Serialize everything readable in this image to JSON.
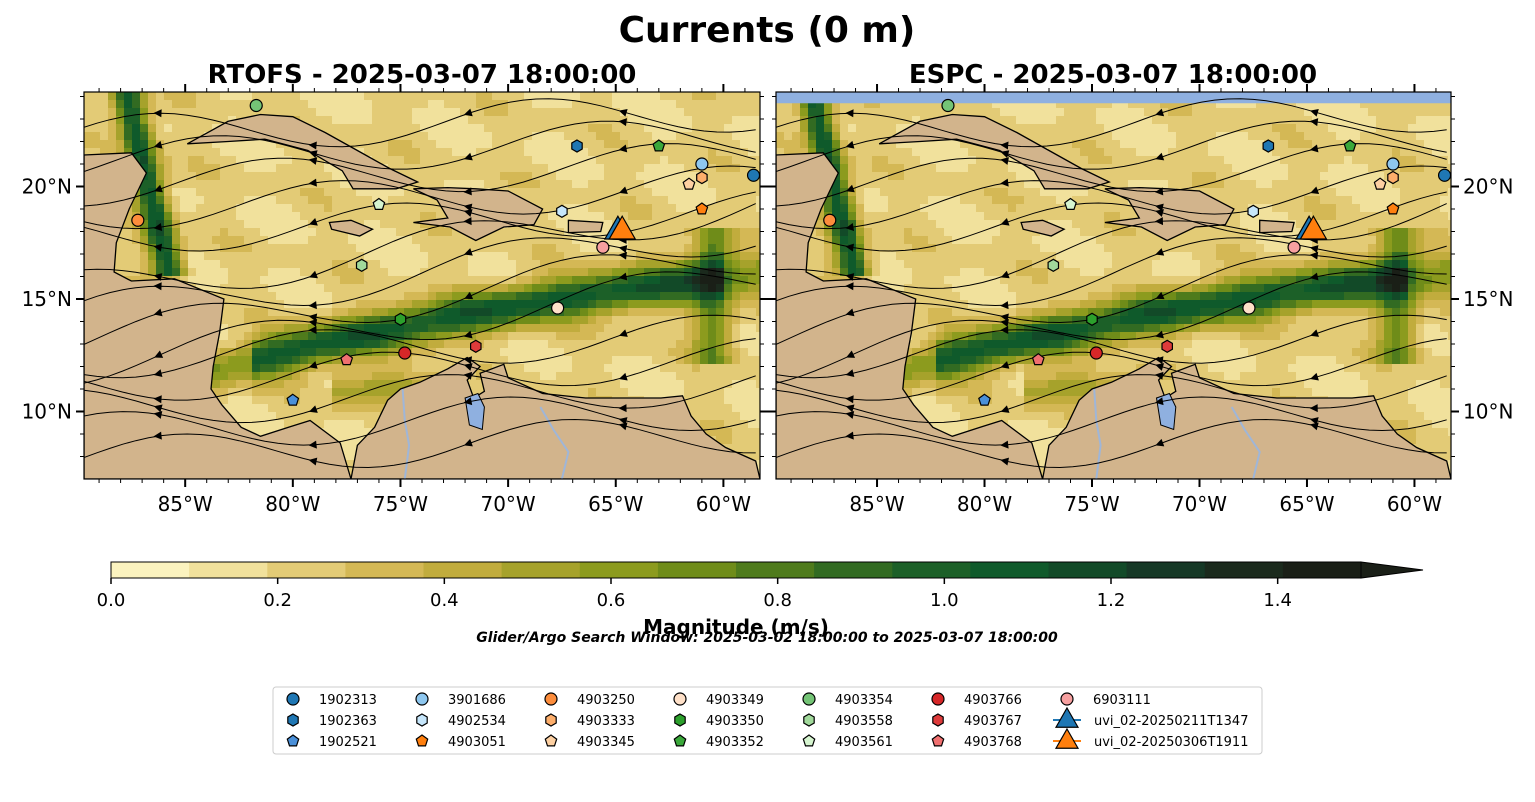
{
  "suptitle": "Currents (0 m)",
  "subtitle": "Glider/Argo Search Window: 2025-03-02 18:00:00 to 2025-03-07 18:00:00",
  "colors": {
    "land": "#d2b48c",
    "lake": "#8fb0e0",
    "river": "#9fb6d8",
    "colormap": [
      "#fbf3bf",
      "#f1e19c",
      "#e3cb76",
      "#d4b855",
      "#c1ac3d",
      "#a6a22b",
      "#8c9b1e",
      "#6f8c19",
      "#4f7b1c",
      "#326b22",
      "#1c6028",
      "#0f5a2b",
      "#124a28",
      "#163826",
      "#1b2a1d",
      "#1a1f17"
    ]
  },
  "icons": {
    "circle": "circle-marker",
    "hexagon": "hexagon-marker",
    "pentagon": "pentagon-marker",
    "triangle": "triangle-marker"
  },
  "chart_data": [
    {
      "type": "map",
      "title": "RTOFS - 2025-03-07 18:00:00",
      "lon_range": [
        -89.7,
        -58.3
      ],
      "lat_range": [
        7.0,
        24.2
      ],
      "xticks": [
        -85,
        -80,
        -75,
        -70,
        -65,
        -60
      ],
      "xticklabels": [
        "85°W",
        "80°W",
        "75°W",
        "70°W",
        "65°W",
        "60°W"
      ],
      "yticks": [
        10,
        15,
        20
      ],
      "yticklabels": [
        "10°N",
        "15°N",
        "20°N"
      ],
      "ytick_side": "left",
      "points": [
        {
          "id": "1902313",
          "lon": -58.6,
          "lat": 20.5
        },
        {
          "id": "1902363",
          "lon": -66.8,
          "lat": 21.8
        },
        {
          "id": "1902521",
          "lon": -80.0,
          "lat": 10.5
        },
        {
          "id": "3901686",
          "lon": -61.0,
          "lat": 21.0
        },
        {
          "id": "4902534",
          "lon": -67.5,
          "lat": 18.9
        },
        {
          "id": "4903051",
          "lon": -61.0,
          "lat": 19.0
        },
        {
          "id": "4903250",
          "lon": -87.2,
          "lat": 18.5
        },
        {
          "id": "4903333",
          "lon": -61.0,
          "lat": 20.4
        },
        {
          "id": "4903345",
          "lon": -61.6,
          "lat": 20.1
        },
        {
          "id": "4903349",
          "lon": -67.7,
          "lat": 14.6
        },
        {
          "id": "4903350",
          "lon": -75.0,
          "lat": 14.1
        },
        {
          "id": "4903352",
          "lon": -63.0,
          "lat": 21.8
        },
        {
          "id": "4903354",
          "lon": -81.7,
          "lat": 23.6
        },
        {
          "id": "4903558",
          "lon": -76.8,
          "lat": 16.5
        },
        {
          "id": "4903561",
          "lon": -76.0,
          "lat": 19.2
        },
        {
          "id": "4903766",
          "lon": -74.8,
          "lat": 12.6
        },
        {
          "id": "4903767",
          "lon": -71.5,
          "lat": 12.9
        },
        {
          "id": "4903768",
          "lon": -77.5,
          "lat": 12.3
        },
        {
          "id": "6903111",
          "lon": -65.6,
          "lat": 17.3
        },
        {
          "id": "uvi_02-20250211T1347",
          "lon": -64.9,
          "lat": 18.1
        },
        {
          "id": "uvi_02-20250306T1911",
          "lon": -64.7,
          "lat": 18.1
        }
      ]
    },
    {
      "type": "map",
      "title": "ESPC - 2025-03-07 18:00:00",
      "lon_range": [
        -89.7,
        -58.3
      ],
      "lat_range": [
        7.0,
        24.2
      ],
      "xticks": [
        -85,
        -80,
        -75,
        -70,
        -65,
        -60
      ],
      "xticklabels": [
        "85°W",
        "80°W",
        "75°W",
        "70°W",
        "65°W",
        "60°W"
      ],
      "yticks": [
        10,
        15,
        20
      ],
      "yticklabels": [
        "10°N",
        "15°N",
        "20°N"
      ],
      "ytick_side": "right",
      "no_data_band_lat": [
        23.7,
        24.2
      ],
      "points": [
        {
          "id": "1902313",
          "lon": -58.6,
          "lat": 20.5
        },
        {
          "id": "1902363",
          "lon": -66.8,
          "lat": 21.8
        },
        {
          "id": "1902521",
          "lon": -80.0,
          "lat": 10.5
        },
        {
          "id": "3901686",
          "lon": -61.0,
          "lat": 21.0
        },
        {
          "id": "4902534",
          "lon": -67.5,
          "lat": 18.9
        },
        {
          "id": "4903051",
          "lon": -61.0,
          "lat": 19.0
        },
        {
          "id": "4903250",
          "lon": -87.2,
          "lat": 18.5
        },
        {
          "id": "4903333",
          "lon": -61.0,
          "lat": 20.4
        },
        {
          "id": "4903345",
          "lon": -61.6,
          "lat": 20.1
        },
        {
          "id": "4903349",
          "lon": -67.7,
          "lat": 14.6
        },
        {
          "id": "4903350",
          "lon": -75.0,
          "lat": 14.1
        },
        {
          "id": "4903352",
          "lon": -63.0,
          "lat": 21.8
        },
        {
          "id": "4903354",
          "lon": -81.7,
          "lat": 23.6
        },
        {
          "id": "4903558",
          "lon": -76.8,
          "lat": 16.5
        },
        {
          "id": "4903561",
          "lon": -76.0,
          "lat": 19.2
        },
        {
          "id": "4903766",
          "lon": -74.8,
          "lat": 12.6
        },
        {
          "id": "4903767",
          "lon": -71.5,
          "lat": 12.9
        },
        {
          "id": "4903768",
          "lon": -77.5,
          "lat": 12.3
        },
        {
          "id": "6903111",
          "lon": -65.6,
          "lat": 17.3
        },
        {
          "id": "uvi_02-20250211T1347",
          "lon": -64.9,
          "lat": 18.1
        },
        {
          "id": "uvi_02-20250306T1911",
          "lon": -64.7,
          "lat": 18.1
        }
      ]
    }
  ],
  "colorbar": {
    "label": "Magnitude (m/s)",
    "min": 0.0,
    "max": 1.5,
    "levels": 16,
    "extend": "max",
    "ticks": [
      0.0,
      0.2,
      0.4,
      0.6,
      0.8,
      1.0,
      1.2,
      1.4
    ],
    "ticklabels": [
      "0.0",
      "0.2",
      "0.4",
      "0.6",
      "0.8",
      "1.0",
      "1.2",
      "1.4"
    ]
  },
  "legend": {
    "ncol": 7,
    "entries": [
      {
        "label": "1902313",
        "marker": "circle",
        "color": "#1f77b4"
      },
      {
        "label": "1902363",
        "marker": "hexagon",
        "color": "#1f77b4"
      },
      {
        "label": "1902521",
        "marker": "pentagon",
        "color": "#4a90d9"
      },
      {
        "label": "3901686",
        "marker": "circle",
        "color": "#8ec7ef"
      },
      {
        "label": "4902534",
        "marker": "hexagon",
        "color": "#c6e6fb"
      },
      {
        "label": "4903051",
        "marker": "pentagon",
        "color": "#ff7f0e"
      },
      {
        "label": "4903250",
        "marker": "circle",
        "color": "#fd8d3c"
      },
      {
        "label": "4903333",
        "marker": "hexagon",
        "color": "#fdae6b"
      },
      {
        "label": "4903345",
        "marker": "pentagon",
        "color": "#fdd0a2"
      },
      {
        "label": "4903349",
        "marker": "circle",
        "color": "#fee0c8"
      },
      {
        "label": "4903350",
        "marker": "hexagon",
        "color": "#2ca02c"
      },
      {
        "label": "4903352",
        "marker": "pentagon",
        "color": "#3aa83a"
      },
      {
        "label": "4903354",
        "marker": "circle",
        "color": "#74c476"
      },
      {
        "label": "4903558",
        "marker": "hexagon",
        "color": "#a1d99b"
      },
      {
        "label": "4903561",
        "marker": "pentagon",
        "color": "#d6f5d0"
      },
      {
        "label": "4903766",
        "marker": "circle",
        "color": "#d62728"
      },
      {
        "label": "4903767",
        "marker": "hexagon",
        "color": "#de3b3b"
      },
      {
        "label": "4903768",
        "marker": "pentagon",
        "color": "#f07070"
      },
      {
        "label": "6903111",
        "marker": "circle",
        "color": "#f7a0a0"
      },
      {
        "label": "uvi_02-20250211T1347",
        "marker": "triangle",
        "color": "#1f77b4",
        "line": true
      },
      {
        "label": "uvi_02-20250306T1911",
        "marker": "triangle",
        "color": "#ff7f0e",
        "line": true
      }
    ]
  }
}
